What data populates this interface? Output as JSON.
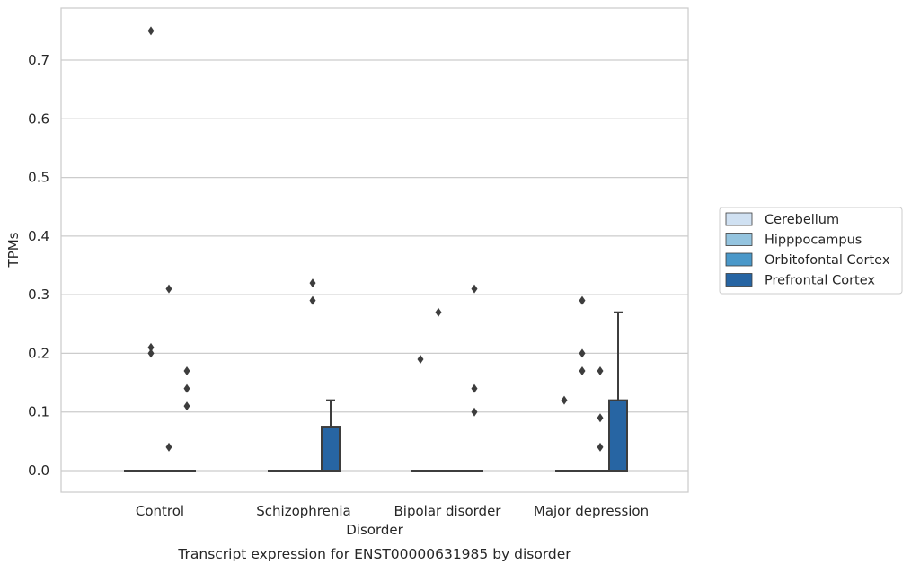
{
  "caption": "Transcript expression for ENST00000631985 by disorder",
  "chart_data": {
    "type": "boxplot",
    "xlabel": "Disorder",
    "ylabel": "TPMs",
    "ylim": [
      -0.037,
      0.788
    ],
    "yticks": [
      0.0,
      0.1,
      0.2,
      0.3,
      0.4,
      0.5,
      0.6,
      0.7
    ],
    "ytick_labels": [
      "0.0",
      "0.1",
      "0.2",
      "0.3",
      "0.4",
      "0.5",
      "0.6",
      "0.7"
    ],
    "grid": "horizontal",
    "legend_position": "right",
    "categories": [
      "Control",
      "Schizophrenia",
      "Bipolar disorder",
      "Major depression"
    ],
    "series": [
      {
        "name": "Cerebellum",
        "color": "#d0e1f2"
      },
      {
        "name": "Hipppocampus",
        "color": "#94c4df"
      },
      {
        "name": "Orbitofontal Cortex",
        "color": "#4a98c9"
      },
      {
        "name": "Prefrontal Cortex",
        "color": "#2765a3"
      }
    ],
    "boxes": [
      {
        "category": 0,
        "series": 0,
        "q1": 0,
        "median": 0,
        "q3": 0,
        "whisker_low": 0,
        "whisker_high": 0,
        "outliers": []
      },
      {
        "category": 0,
        "series": 1,
        "q1": 0,
        "median": 0,
        "q3": 0,
        "whisker_low": 0,
        "whisker_high": 0,
        "outliers": [
          0.75,
          0.21,
          0.2
        ]
      },
      {
        "category": 0,
        "series": 2,
        "q1": 0,
        "median": 0,
        "q3": 0,
        "whisker_low": 0,
        "whisker_high": 0,
        "outliers": [
          0.31,
          0.04
        ]
      },
      {
        "category": 0,
        "series": 3,
        "q1": 0,
        "median": 0,
        "q3": 0,
        "whisker_low": 0,
        "whisker_high": 0,
        "outliers": [
          0.17,
          0.14,
          0.11
        ]
      },
      {
        "category": 1,
        "series": 0,
        "q1": 0,
        "median": 0,
        "q3": 0,
        "whisker_low": 0,
        "whisker_high": 0,
        "outliers": []
      },
      {
        "category": 1,
        "series": 1,
        "q1": 0,
        "median": 0,
        "q3": 0,
        "whisker_low": 0,
        "whisker_high": 0,
        "outliers": []
      },
      {
        "category": 1,
        "series": 2,
        "q1": 0,
        "median": 0,
        "q3": 0,
        "whisker_low": 0,
        "whisker_high": 0,
        "outliers": [
          0.32,
          0.29
        ]
      },
      {
        "category": 1,
        "series": 3,
        "q1": 0,
        "median": 0,
        "q3": 0.075,
        "whisker_low": 0,
        "whisker_high": 0.12,
        "outliers": []
      },
      {
        "category": 2,
        "series": 0,
        "q1": 0,
        "median": 0,
        "q3": 0,
        "whisker_low": 0,
        "whisker_high": 0,
        "outliers": [
          0.19
        ]
      },
      {
        "category": 2,
        "series": 1,
        "q1": 0,
        "median": 0,
        "q3": 0,
        "whisker_low": 0,
        "whisker_high": 0,
        "outliers": [
          0.27
        ]
      },
      {
        "category": 2,
        "series": 2,
        "q1": 0,
        "median": 0,
        "q3": 0,
        "whisker_low": 0,
        "whisker_high": 0,
        "outliers": []
      },
      {
        "category": 2,
        "series": 3,
        "q1": 0,
        "median": 0,
        "q3": 0,
        "whisker_low": 0,
        "whisker_high": 0,
        "outliers": [
          0.31,
          0.14,
          0.1
        ]
      },
      {
        "category": 3,
        "series": 0,
        "q1": 0,
        "median": 0,
        "q3": 0,
        "whisker_low": 0,
        "whisker_high": 0,
        "outliers": [
          0.12
        ]
      },
      {
        "category": 3,
        "series": 1,
        "q1": 0,
        "median": 0,
        "q3": 0,
        "whisker_low": 0,
        "whisker_high": 0,
        "outliers": [
          0.29,
          0.2,
          0.17
        ]
      },
      {
        "category": 3,
        "series": 2,
        "q1": 0,
        "median": 0,
        "q3": 0,
        "whisker_low": 0,
        "whisker_high": 0,
        "outliers": [
          0.17,
          0.09,
          0.04
        ]
      },
      {
        "category": 3,
        "series": 3,
        "q1": 0,
        "median": 0,
        "q3": 0.12,
        "whisker_low": 0,
        "whisker_high": 0.27,
        "outliers": []
      }
    ]
  }
}
